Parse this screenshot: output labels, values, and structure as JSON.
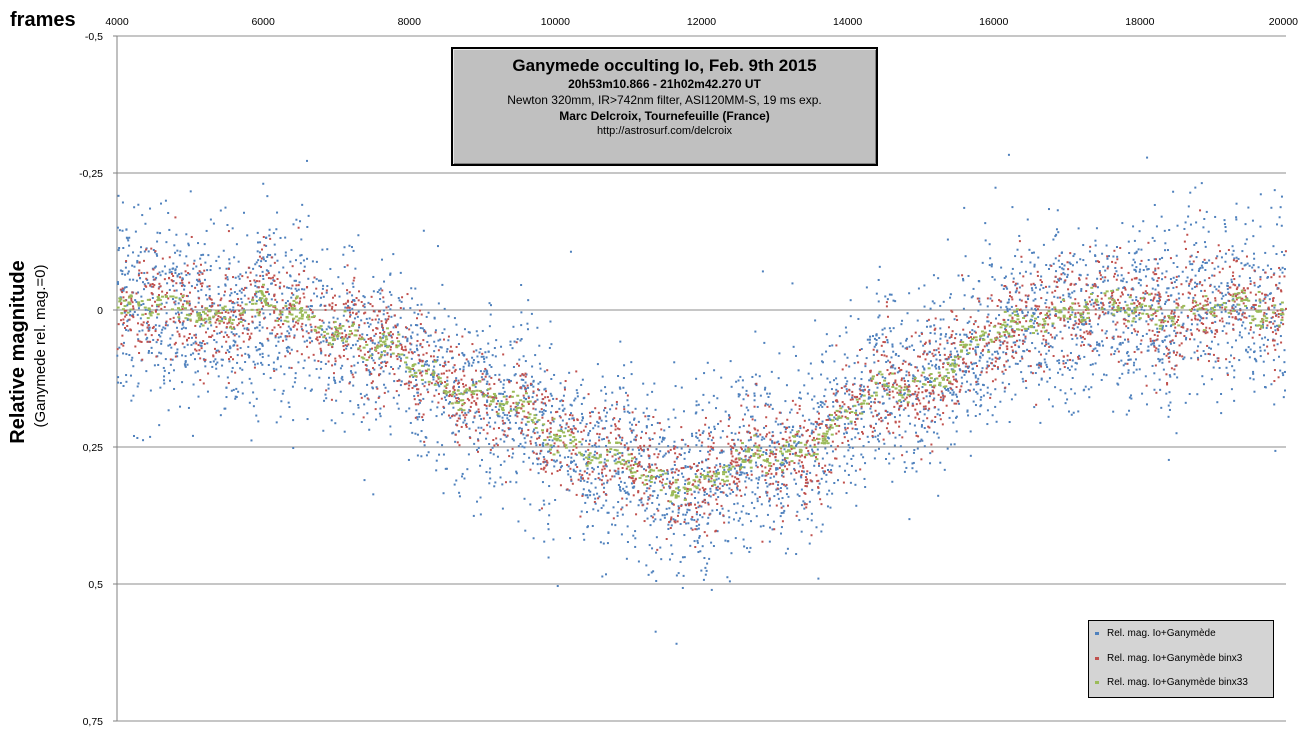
{
  "chart_data": {
    "type": "scatter",
    "title": "Ganymede occulting Io,  Feb. 9th 2015",
    "subtitle_lines": [
      "20h53m10.866 - 21h02m42.270 UT",
      "Newton 320mm, IR>742nm  filter, ASI120MM-S,    19 ms exp.",
      "Marc Delcroix,  Tournefeuille (France)",
      "http://astrosurf.com/delcroix"
    ],
    "xlabel": "frames",
    "ylabel": "Relative magnitude",
    "ylabel_sub": "(Ganymede  rel. mag.=0)",
    "xlim": [
      4000,
      20000
    ],
    "ylim": [
      -0.5,
      0.75
    ],
    "y_inverted": true,
    "x_ticks": [
      "4000",
      "6000",
      "8000",
      "10000",
      "12000",
      "14000",
      "16000",
      "18000",
      "20000"
    ],
    "y_ticks": [
      "-0,5",
      "-0,25",
      "0",
      "0,25",
      "0,5",
      "0,75"
    ],
    "grid": "horizontal",
    "legend_position": "bottom-right",
    "trend": {
      "x": [
        4000,
        5000,
        6000,
        7000,
        8000,
        9000,
        10000,
        10500,
        11000,
        11500,
        12000,
        12500,
        13000,
        13500,
        14000,
        14500,
        15000,
        15500,
        16000,
        16500,
        17000,
        18000,
        19000,
        20000
      ],
      "y": [
        0.0,
        0.0,
        0.0,
        0.03,
        0.1,
        0.16,
        0.22,
        0.26,
        0.29,
        0.32,
        0.3,
        0.29,
        0.27,
        0.24,
        0.2,
        0.15,
        0.13,
        0.09,
        0.06,
        0.01,
        0.0,
        0.0,
        0.0,
        0.0
      ]
    },
    "series": [
      {
        "name": "Rel. mag. Io+Ganymède",
        "color": "#4f81bd",
        "scatter_sd": 0.085,
        "count": 4200
      },
      {
        "name": "Rel. mag.  Io+Ganymède binx3",
        "color": "#c0504d",
        "scatter_sd": 0.05,
        "count": 2600
      },
      {
        "name": "Rel. mag. Io+Ganymède binx33",
        "color": "#9bbb59",
        "scatter_sd": 0.012,
        "count": 900
      }
    ]
  }
}
